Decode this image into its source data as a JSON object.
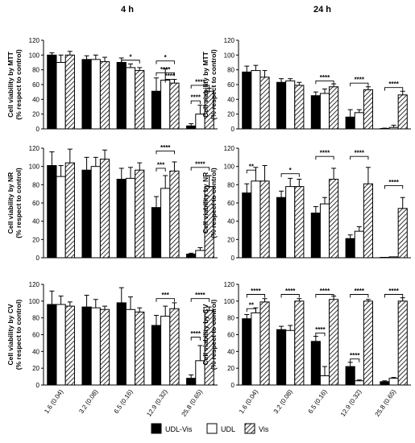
{
  "column_titles": [
    "4 h",
    "24 h"
  ],
  "chart_data": [
    {
      "type": "bar",
      "panel": "4 h - MTT",
      "categories": [
        "1.6 (0.04)",
        "3.2 (0.08)",
        "6.5 (0.16)",
        "12.9 (0.32)",
        "25.8 (0.65)"
      ],
      "ylabel": [
        "Cell viability by MTT",
        "(% respect to control)"
      ],
      "ylim": [
        0,
        120
      ],
      "yticks": [
        0,
        20,
        40,
        60,
        80,
        100,
        120
      ],
      "series": [
        {
          "name": "UDL-Vis",
          "values": [
            100,
            94,
            90,
            51,
            4
          ],
          "errors": [
            3,
            5,
            6,
            18,
            3
          ]
        },
        {
          "name": "UDL",
          "values": [
            90,
            94,
            83,
            66,
            20
          ],
          "errors": [
            10,
            6,
            5,
            15,
            12
          ]
        },
        {
          "name": "Vis",
          "values": [
            100,
            91,
            79,
            62,
            51
          ],
          "errors": [
            5,
            6,
            4,
            5,
            4
          ]
        }
      ],
      "significance": [
        {
          "cat": 2,
          "from": 0,
          "to": 2,
          "y": 93,
          "label": "*"
        },
        {
          "cat": 3,
          "from": 0,
          "to": 2,
          "y": 92,
          "label": "*"
        },
        {
          "cat": 3,
          "from": 0,
          "to": 2,
          "y": 76,
          "label": "****"
        },
        {
          "cat": 3,
          "from": 1,
          "to": 2,
          "y": 67,
          "label": "****"
        },
        {
          "cat": 4,
          "from": 0,
          "to": 2,
          "y": 59,
          "label": "****"
        },
        {
          "cat": 4,
          "from": 0,
          "to": 1,
          "y": 38,
          "label": "****"
        }
      ]
    },
    {
      "type": "bar",
      "panel": "24 h - MTT",
      "categories": [
        "1.6 (0.04)",
        "3.2 (0.08)",
        "6.5 (0.16)",
        "12.9 (0.32)",
        "25.8 (0.65)"
      ],
      "ylabel": [
        "Cell viability by MTT",
        "(% respect to control)"
      ],
      "ylim": [
        0,
        120
      ],
      "yticks": [
        0,
        20,
        40,
        60,
        80,
        100,
        120
      ],
      "series": [
        {
          "name": "UDL-Vis",
          "values": [
            77,
            63,
            45,
            16,
            0
          ],
          "errors": [
            8,
            5,
            5,
            10,
            1
          ]
        },
        {
          "name": "UDL",
          "values": [
            79,
            65,
            48,
            22,
            2
          ],
          "errors": [
            7,
            3,
            6,
            4,
            3
          ]
        },
        {
          "name": "Vis",
          "values": [
            70,
            59,
            57,
            53,
            46
          ],
          "errors": [
            9,
            4,
            4,
            4,
            5
          ]
        }
      ],
      "significance": [
        {
          "cat": 2,
          "from": 0,
          "to": 2,
          "y": 65,
          "label": "****"
        },
        {
          "cat": 3,
          "from": 0,
          "to": 2,
          "y": 62,
          "label": "****"
        },
        {
          "cat": 4,
          "from": 0,
          "to": 2,
          "y": 56,
          "label": "****"
        }
      ]
    },
    {
      "type": "bar",
      "panel": "4 h - NR",
      "categories": [
        "1.6 (0.04)",
        "3.2 (0.08)",
        "6.5 (0.16)",
        "12.9 (0.32)",
        "25.8 (0.65)"
      ],
      "ylabel": [
        "Cell viability by NR",
        "(% respect to control)"
      ],
      "ylim": [
        0,
        120
      ],
      "yticks": [
        0,
        20,
        40,
        60,
        80,
        100,
        120
      ],
      "series": [
        {
          "name": "UDL-Vis",
          "values": [
            101,
            96,
            86,
            55,
            4
          ],
          "errors": [
            15,
            14,
            12,
            12,
            1
          ]
        },
        {
          "name": "UDL",
          "values": [
            89,
            100,
            87,
            76,
            8
          ],
          "errors": [
            12,
            10,
            12,
            14,
            3
          ]
        },
        {
          "name": "Vis",
          "values": [
            104,
            108,
            96,
            95,
            78
          ],
          "errors": [
            15,
            10,
            8,
            10,
            12
          ]
        }
      ],
      "significance": [
        {
          "cat": 3,
          "from": 0,
          "to": 2,
          "y": 117,
          "label": "****"
        },
        {
          "cat": 3,
          "from": 0,
          "to": 1,
          "y": 98,
          "label": "***"
        },
        {
          "cat": 4,
          "from": 0,
          "to": 2,
          "y": 99,
          "label": "****"
        }
      ]
    },
    {
      "type": "bar",
      "panel": "24 h - NR",
      "categories": [
        "1.6 (0.04)",
        "3.2 (0.08)",
        "6.5 (0.16)",
        "12.9 (0.32)",
        "25.8 (0.65)"
      ],
      "ylabel": [
        "Cell viability by NR",
        "(% respect to control)"
      ],
      "ylim": [
        0,
        120
      ],
      "yticks": [
        0,
        20,
        40,
        60,
        80,
        100,
        120
      ],
      "series": [
        {
          "name": "UDL-Vis",
          "values": [
            71,
            66,
            49,
            21,
            0
          ],
          "errors": [
            10,
            7,
            7,
            4,
            0
          ]
        },
        {
          "name": "UDL",
          "values": [
            84,
            78,
            59,
            29,
            1
          ],
          "errors": [
            15,
            9,
            7,
            5,
            0
          ]
        },
        {
          "name": "Vis",
          "values": [
            84,
            78,
            86,
            81,
            54
          ],
          "errors": [
            17,
            8,
            12,
            18,
            12
          ]
        }
      ],
      "significance": [
        {
          "cat": 0,
          "from": 0,
          "to": 1,
          "y": 96,
          "label": "**"
        },
        {
          "cat": 1,
          "from": 0,
          "to": 2,
          "y": 92,
          "label": "*"
        },
        {
          "cat": 2,
          "from": 0,
          "to": 2,
          "y": 111,
          "label": "****"
        },
        {
          "cat": 3,
          "from": 0,
          "to": 2,
          "y": 111,
          "label": "****"
        },
        {
          "cat": 4,
          "from": 0,
          "to": 2,
          "y": 79,
          "label": "****"
        }
      ]
    },
    {
      "type": "bar",
      "panel": "4 h - CV",
      "categories": [
        "1.6 (0.04)",
        "3.2 (0.08)",
        "6.5 (0.16)",
        "12.9 (0.32)",
        "25.8 (0.65)"
      ],
      "ylabel": [
        "Cell viability by CV",
        "(% respect to control)"
      ],
      "ylim": [
        0,
        120
      ],
      "yticks": [
        0,
        20,
        40,
        60,
        80,
        100,
        120
      ],
      "series": [
        {
          "name": "UDL-Vis",
          "values": [
            96,
            93,
            98,
            71,
            8
          ],
          "errors": [
            16,
            14,
            18,
            12,
            4
          ]
        },
        {
          "name": "UDL",
          "values": [
            96,
            92,
            90,
            82,
            29
          ],
          "errors": [
            10,
            10,
            15,
            12,
            18
          ]
        },
        {
          "name": "Vis",
          "values": [
            94,
            90,
            87,
            91,
            89
          ],
          "errors": [
            5,
            4,
            5,
            7,
            4
          ]
        }
      ],
      "significance": [
        {
          "cat": 3,
          "from": 0,
          "to": 2,
          "y": 103,
          "label": "***"
        },
        {
          "cat": 4,
          "from": 0,
          "to": 2,
          "y": 103,
          "label": "****"
        },
        {
          "cat": 4,
          "from": 0,
          "to": 1,
          "y": 57,
          "label": "****"
        }
      ]
    },
    {
      "type": "bar",
      "panel": "24 h - CV",
      "categories": [
        "1.6 (0.04)",
        "3.2 (0.08)",
        "6.5 (0.16)",
        "12.9 (0.32)",
        "25.8 (0.65)"
      ],
      "ylabel": [
        "Cell viability by CV",
        "(% respect to control)"
      ],
      "ylim": [
        0,
        120
      ],
      "yticks": [
        0,
        20,
        40,
        60,
        80,
        100,
        120
      ],
      "series": [
        {
          "name": "UDL-Vis",
          "values": [
            79,
            66,
            52,
            22,
            4
          ],
          "errors": [
            5,
            4,
            6,
            5,
            1
          ]
        },
        {
          "name": "UDL",
          "values": [
            86,
            65,
            11,
            5,
            8
          ],
          "errors": [
            6,
            6,
            11,
            1,
            1
          ]
        },
        {
          "name": "Vis",
          "values": [
            99,
            100,
            102,
            100,
            100
          ],
          "errors": [
            4,
            3,
            4,
            2,
            4
          ]
        }
      ],
      "significance": [
        {
          "cat": 0,
          "from": 0,
          "to": 2,
          "y": 108,
          "label": "****"
        },
        {
          "cat": 0,
          "from": 0,
          "to": 1,
          "y": 91,
          "label": "**"
        },
        {
          "cat": 1,
          "from": 0,
          "to": 2,
          "y": 108,
          "label": "****"
        },
        {
          "cat": 2,
          "from": 0,
          "to": 2,
          "y": 108,
          "label": "****"
        },
        {
          "cat": 2,
          "from": 0,
          "to": 1,
          "y": 62,
          "label": "****"
        },
        {
          "cat": 3,
          "from": 0,
          "to": 2,
          "y": 108,
          "label": "****"
        },
        {
          "cat": 3,
          "from": 0,
          "to": 1,
          "y": 31,
          "label": "****"
        },
        {
          "cat": 4,
          "from": 0,
          "to": 2,
          "y": 108,
          "label": "****"
        }
      ]
    }
  ],
  "legend": {
    "placement": "bottom-center",
    "items": [
      {
        "label": "UDL-Vis",
        "fill": "solid-black"
      },
      {
        "label": "UDL",
        "fill": "white"
      },
      {
        "label": "Vis",
        "fill": "hatched"
      }
    ]
  },
  "colors": {
    "bar_solid": "#000000",
    "bar_open": "#ffffff",
    "stroke": "#000000"
  }
}
